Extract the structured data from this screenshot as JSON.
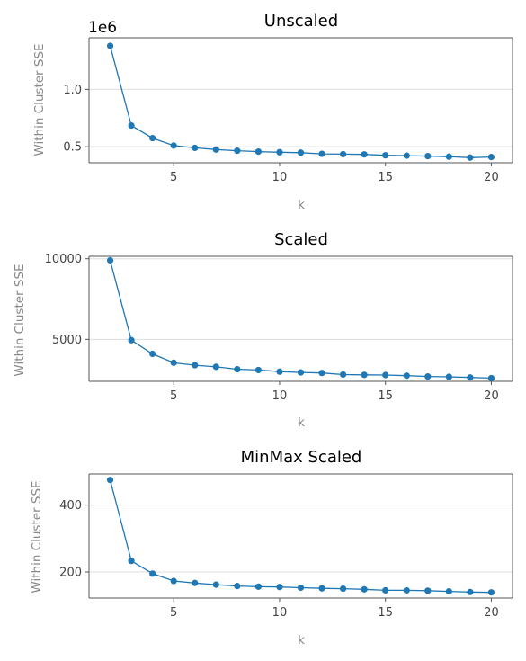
{
  "colors": {
    "series": "#1f77b4"
  },
  "chart_data": [
    {
      "type": "line",
      "title": "Unscaled",
      "xlabel": "k",
      "ylabel": "Within Cluster SSE",
      "y_offset_label": "1e6",
      "x": [
        2,
        3,
        4,
        5,
        6,
        7,
        8,
        9,
        10,
        11,
        12,
        13,
        14,
        15,
        16,
        17,
        18,
        19,
        20
      ],
      "values": [
        1.38,
        0.685,
        0.575,
        0.51,
        0.49,
        0.475,
        0.465,
        0.457,
        0.452,
        0.448,
        0.438,
        0.435,
        0.433,
        0.425,
        0.422,
        0.418,
        0.413,
        0.405,
        0.41
      ],
      "xlim": [
        1,
        21
      ],
      "ylim": [
        0.36,
        1.45
      ],
      "xticks": [
        5,
        10,
        15,
        20
      ],
      "xtick_labels": [
        "5",
        "10",
        "15",
        "20"
      ],
      "yticks": [
        0.5,
        1.0
      ],
      "ytick_labels": [
        "0.5",
        "1.0"
      ],
      "grid": "horizontal"
    },
    {
      "type": "line",
      "title": "Scaled",
      "xlabel": "k",
      "ylabel": "Within Cluster SSE",
      "x": [
        2,
        3,
        4,
        5,
        6,
        7,
        8,
        9,
        10,
        11,
        12,
        13,
        14,
        15,
        16,
        17,
        18,
        19,
        20
      ],
      "values": [
        9900,
        4950,
        4100,
        3550,
        3400,
        3300,
        3150,
        3100,
        3000,
        2950,
        2920,
        2820,
        2800,
        2790,
        2750,
        2700,
        2680,
        2640,
        2600
      ],
      "xlim": [
        1,
        21
      ],
      "ylim": [
        2400,
        10150
      ],
      "xticks": [
        5,
        10,
        15,
        20
      ],
      "xtick_labels": [
        "5",
        "10",
        "15",
        "20"
      ],
      "yticks": [
        5000,
        10000
      ],
      "ytick_labels": [
        "5000",
        "10000"
      ],
      "grid": "horizontal"
    },
    {
      "type": "line",
      "title": "MinMax Scaled",
      "xlabel": "k",
      "ylabel": "Within Cluster SSE",
      "x": [
        2,
        3,
        4,
        5,
        6,
        7,
        8,
        9,
        10,
        11,
        12,
        13,
        14,
        15,
        16,
        17,
        18,
        19,
        20
      ],
      "values": [
        475,
        233,
        195,
        173,
        167,
        162,
        158,
        156,
        155,
        153,
        151,
        150,
        148,
        145,
        145,
        144,
        142,
        140,
        139
      ],
      "xlim": [
        1,
        21
      ],
      "ylim": [
        122,
        493
      ],
      "xticks": [
        5,
        10,
        15,
        20
      ],
      "xtick_labels": [
        "5",
        "10",
        "15",
        "20"
      ],
      "yticks": [
        200,
        400
      ],
      "ytick_labels": [
        "200",
        "400"
      ],
      "grid": "horizontal"
    }
  ]
}
